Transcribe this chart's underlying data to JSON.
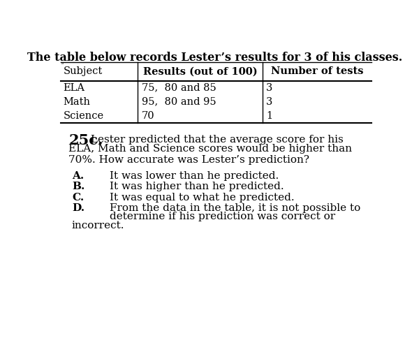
{
  "title": "The table below records Lester’s results for 3 of his classes.",
  "table_headers": [
    "Subject",
    "Results (out of 100)",
    "Number of tests"
  ],
  "table_rows": [
    [
      "ELA",
      "75,  80 and 85",
      "3"
    ],
    [
      "Math",
      "95,  80 and 95",
      "3"
    ],
    [
      "Science",
      "70",
      "1"
    ]
  ],
  "question_number": "25c.",
  "question_line1": " Lester predicted that the average score for his",
  "question_line2": "ELA, Math and Science scores would be higher than",
  "question_line3": "70%. How accurate was Lester’s prediction?",
  "options_letters": [
    "A.",
    "B.",
    "C.",
    "D."
  ],
  "options_lines": [
    [
      "It was lower than he predicted."
    ],
    [
      "It was higher than he predicted."
    ],
    [
      "It was equal to what he predicted."
    ],
    [
      "From the data in the table, it is not possible to",
      "determine if his prediction was correct or",
      "incorrect."
    ]
  ],
  "bg_color": "#ffffff",
  "text_color": "#000000",
  "title_fs": 11.5,
  "table_fs": 10.5,
  "question_fs": 11.0,
  "qnum_fs": 15.0,
  "opt_fs": 11.0
}
